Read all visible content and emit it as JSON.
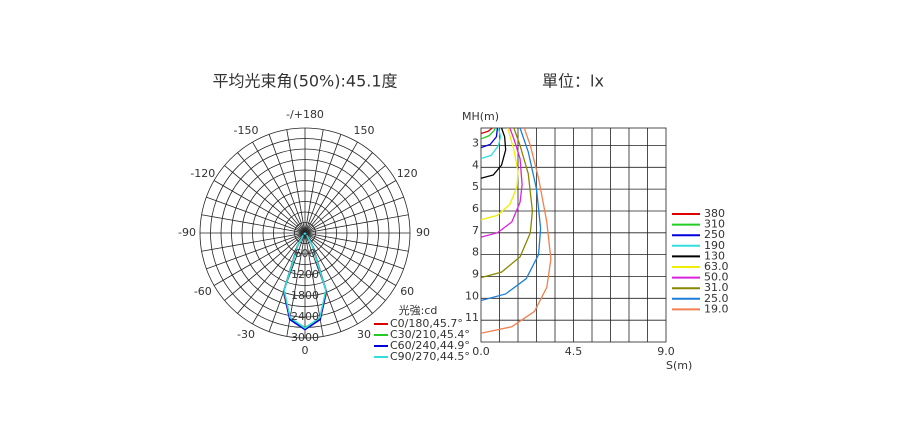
{
  "chart_data": [
    {
      "type": "polar",
      "title": "平均光束角(50%):45.1度",
      "unit_label": "光強:cd",
      "rlim": [
        0,
        3000
      ],
      "rticks": [
        0,
        600,
        1200,
        1800,
        2400,
        3000
      ],
      "rgrid": [
        300,
        600,
        900,
        1200,
        1500,
        1800,
        2100,
        2400,
        2700,
        3000
      ],
      "angle_ticks": [
        {
          "value": 180,
          "label": "-/+180"
        },
        -150,
        150,
        -120,
        120,
        -90,
        90,
        -60,
        60,
        -30,
        30,
        0
      ],
      "angle_grid": [
        -170,
        -160,
        -150,
        -140,
        -130,
        -120,
        -110,
        -100,
        -90,
        -80,
        -70,
        -60,
        -50,
        -40,
        -30,
        -20,
        -10,
        0,
        10,
        20,
        30,
        40,
        50,
        60,
        70,
        80,
        90,
        100,
        110,
        120,
        130,
        140,
        150,
        160,
        170,
        180
      ],
      "x": [
        -90,
        -80,
        -70,
        -60,
        -50,
        -40,
        -30,
        -20,
        -10,
        0,
        10,
        20,
        30,
        40,
        50,
        60,
        70,
        80,
        90
      ],
      "series": [
        {
          "name": "C0/180,45.7°",
          "color": "#e00000",
          "values": [
            0,
            0,
            0,
            0,
            15,
            80,
            450,
            1800,
            2500,
            2750,
            2500,
            1800,
            450,
            80,
            15,
            0,
            0,
            0,
            0
          ]
        },
        {
          "name": "C30/210,45.4°",
          "color": "#22cc22",
          "values": [
            0,
            0,
            0,
            0,
            12,
            75,
            430,
            1780,
            2480,
            2700,
            2480,
            1780,
            430,
            75,
            12,
            0,
            0,
            0,
            0
          ]
        },
        {
          "name": "C60/240,44.9°",
          "color": "#0000dd",
          "values": [
            0,
            0,
            0,
            0,
            12,
            70,
            420,
            1760,
            2510,
            2760,
            2510,
            1760,
            420,
            70,
            12,
            0,
            0,
            0,
            0
          ]
        },
        {
          "name": "C90/270,44.5°",
          "color": "#33dddd",
          "values": [
            0,
            0,
            0,
            0,
            10,
            70,
            410,
            1740,
            2450,
            2720,
            2450,
            1740,
            410,
            70,
            10,
            0,
            0,
            0,
            0
          ]
        }
      ]
    },
    {
      "type": "line",
      "title": "單位：lx",
      "y_label": "MH(m)",
      "x_label": "S(m)",
      "xlim": [
        0,
        9
      ],
      "xticks": [
        {
          "value": 0,
          "label": "0.0"
        },
        4.5,
        {
          "value": 9,
          "label": "9.0"
        }
      ],
      "xgrid": [
        0.9,
        1.8,
        2.7,
        3.6,
        4.5,
        5.4,
        6.3,
        7.2,
        8.1
      ],
      "ylim": [
        2.2,
        12
      ],
      "yticks": [
        3,
        4,
        5,
        6,
        7,
        8,
        9,
        10,
        11
      ],
      "y_inverted": true,
      "grid": true,
      "series": [
        {
          "name": "380",
          "color": "#e00000",
          "x": [
            0,
            0.35,
            0.55
          ],
          "values": [
            2.45,
            2.35,
            2.2
          ]
        },
        {
          "name": "310",
          "color": "#22cc22",
          "x": [
            0,
            0.4,
            0.65,
            0.7
          ],
          "values": [
            2.7,
            2.55,
            2.3,
            2.2
          ]
        },
        {
          "name": "250",
          "color": "#0000dd",
          "x": [
            0,
            0.45,
            0.75,
            0.8
          ],
          "values": [
            3.1,
            2.95,
            2.6,
            2.2
          ]
        },
        {
          "name": "190",
          "color": "#33dddd",
          "x": [
            0,
            0.5,
            0.85,
            0.95,
            0.85
          ],
          "values": [
            3.6,
            3.45,
            3.0,
            2.6,
            2.2
          ]
        },
        {
          "name": "130",
          "color": "#000000",
          "x": [
            0,
            0.6,
            1.0,
            1.2,
            1.15,
            1.0
          ],
          "values": [
            4.5,
            4.35,
            3.9,
            3.2,
            2.6,
            2.2
          ]
        },
        {
          "name": "63.0",
          "color": "#eeee00",
          "x": [
            0,
            0.8,
            1.4,
            1.75,
            1.8,
            1.6,
            1.3
          ],
          "values": [
            6.4,
            6.2,
            5.7,
            4.9,
            4.2,
            3.2,
            2.2
          ]
        },
        {
          "name": "50.0",
          "color": "#dd22dd",
          "x": [
            0,
            0.8,
            1.5,
            1.9,
            2.0,
            1.9,
            1.6,
            1.4
          ],
          "values": [
            7.2,
            7.0,
            6.5,
            5.6,
            4.8,
            3.6,
            2.7,
            2.2
          ]
        },
        {
          "name": "31.0",
          "color": "#888800",
          "x": [
            0,
            1.0,
            1.9,
            2.4,
            2.5,
            2.3,
            1.9,
            1.6
          ],
          "values": [
            9.05,
            8.8,
            8.1,
            7.0,
            6.0,
            4.3,
            3.0,
            2.2
          ]
        },
        {
          "name": "25.0",
          "color": "#1c7ed6",
          "x": [
            0,
            1.2,
            2.2,
            2.8,
            2.9,
            2.7,
            2.3,
            1.9
          ],
          "values": [
            10.1,
            9.8,
            9.1,
            8.0,
            6.8,
            5.0,
            3.3,
            2.2
          ]
        },
        {
          "name": "19.0",
          "color": "#f08050",
          "x": [
            0,
            1.5,
            2.6,
            3.2,
            3.4,
            3.2,
            2.8,
            2.4,
            2.1
          ],
          "values": [
            11.6,
            11.3,
            10.6,
            9.5,
            8.2,
            6.5,
            4.5,
            3.0,
            2.2
          ]
        }
      ]
    }
  ]
}
